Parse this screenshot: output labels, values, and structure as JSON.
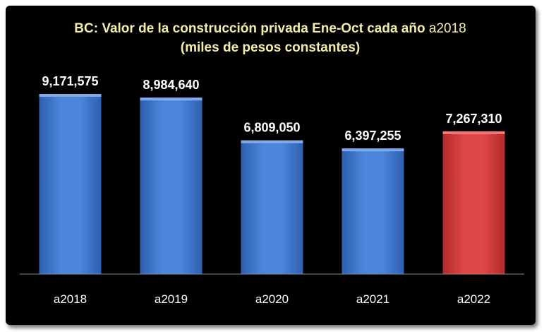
{
  "chart_data": {
    "type": "bar",
    "title_line1_main": "BC: Valor de la construcción privada  Ene-Oct cada año",
    "title_line1_suffix": "a2018",
    "title_line2": "(miles de pesos constantes)",
    "categories": [
      "a2018",
      "a2019",
      "a2020",
      "a2021",
      "a2022"
    ],
    "values": [
      9171575,
      8984640,
      6809050,
      6397255,
      7267310
    ],
    "value_labels": [
      "9,171,575",
      "8,984,640",
      "6,809,050",
      "6,397,255",
      "7,267,310"
    ],
    "bar_colors": [
      "#3f79d0",
      "#3f79d0",
      "#3f79d0",
      "#3f79d0",
      "#d63c3c"
    ],
    "title_color": "#f3eea6",
    "background_color": "#000000",
    "ylim": [
      0,
      10000000
    ],
    "grid": false,
    "legend": "none"
  }
}
